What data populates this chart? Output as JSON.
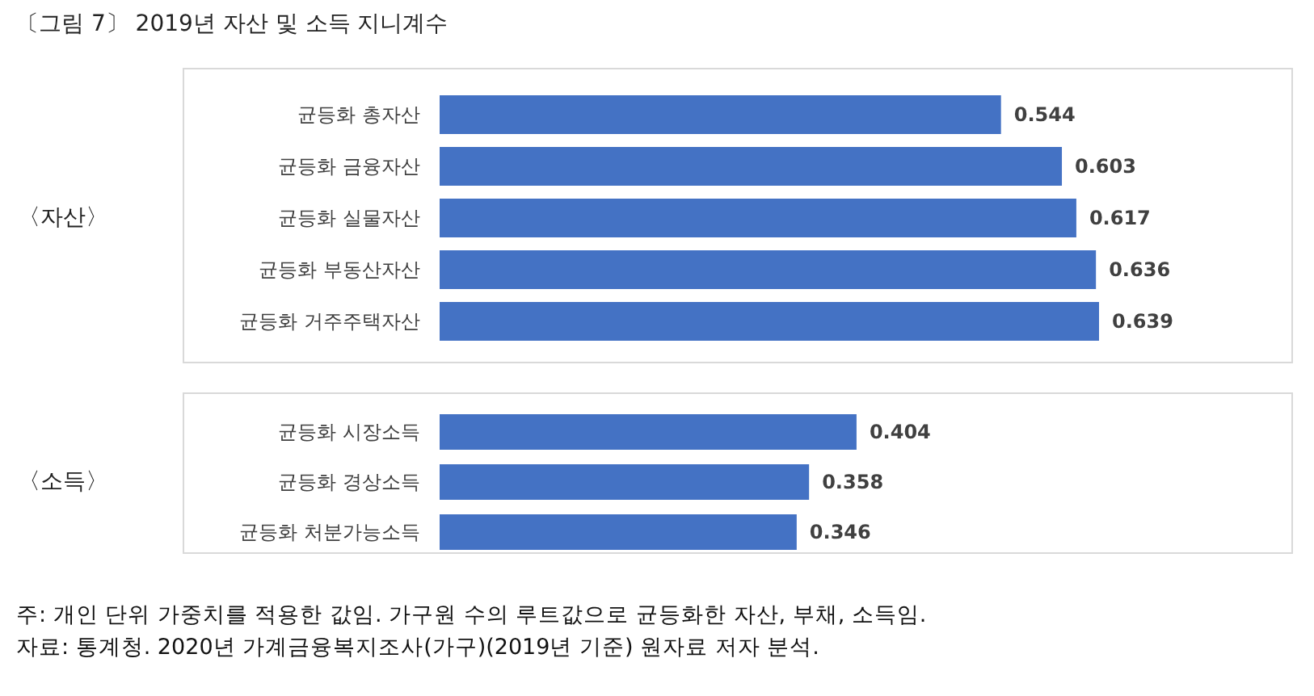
{
  "chart_data": [
    {
      "type": "bar",
      "orientation": "horizontal",
      "title": "〔그림 7〕 2019년 자산 및 소득 지니계수",
      "ylabel": "〈자산〉",
      "categories": [
        "균등화 총자산",
        "균등화 금융자산",
        "균등화 실물자산",
        "균등화 부동산자산",
        "균등화 거주주택자산"
      ],
      "values": [
        0.544,
        0.603,
        0.617,
        0.636,
        0.639
      ],
      "color": "#4472c4",
      "data_labels": true,
      "tick_labels": "y"
    },
    {
      "type": "bar",
      "orientation": "horizontal",
      "ylabel": "〈소득〉",
      "categories": [
        "균등화 시장소득",
        "균등화 경상소득",
        "균등화 처분가능소득"
      ],
      "values": [
        0.404,
        0.358,
        0.346
      ],
      "color": "#4472c4",
      "data_labels": true,
      "tick_labels": "y",
      "annotations": [
        "주: 개인 단위 가중치를 적용한 값임. 가구원 수의 루트값으로 균등화한 자산, 부채, 소득임.",
        "자료: 통계청. 2020년 가계금융복지조사(가구)(2019년 기준) 원자료 저자 분석."
      ]
    }
  ]
}
